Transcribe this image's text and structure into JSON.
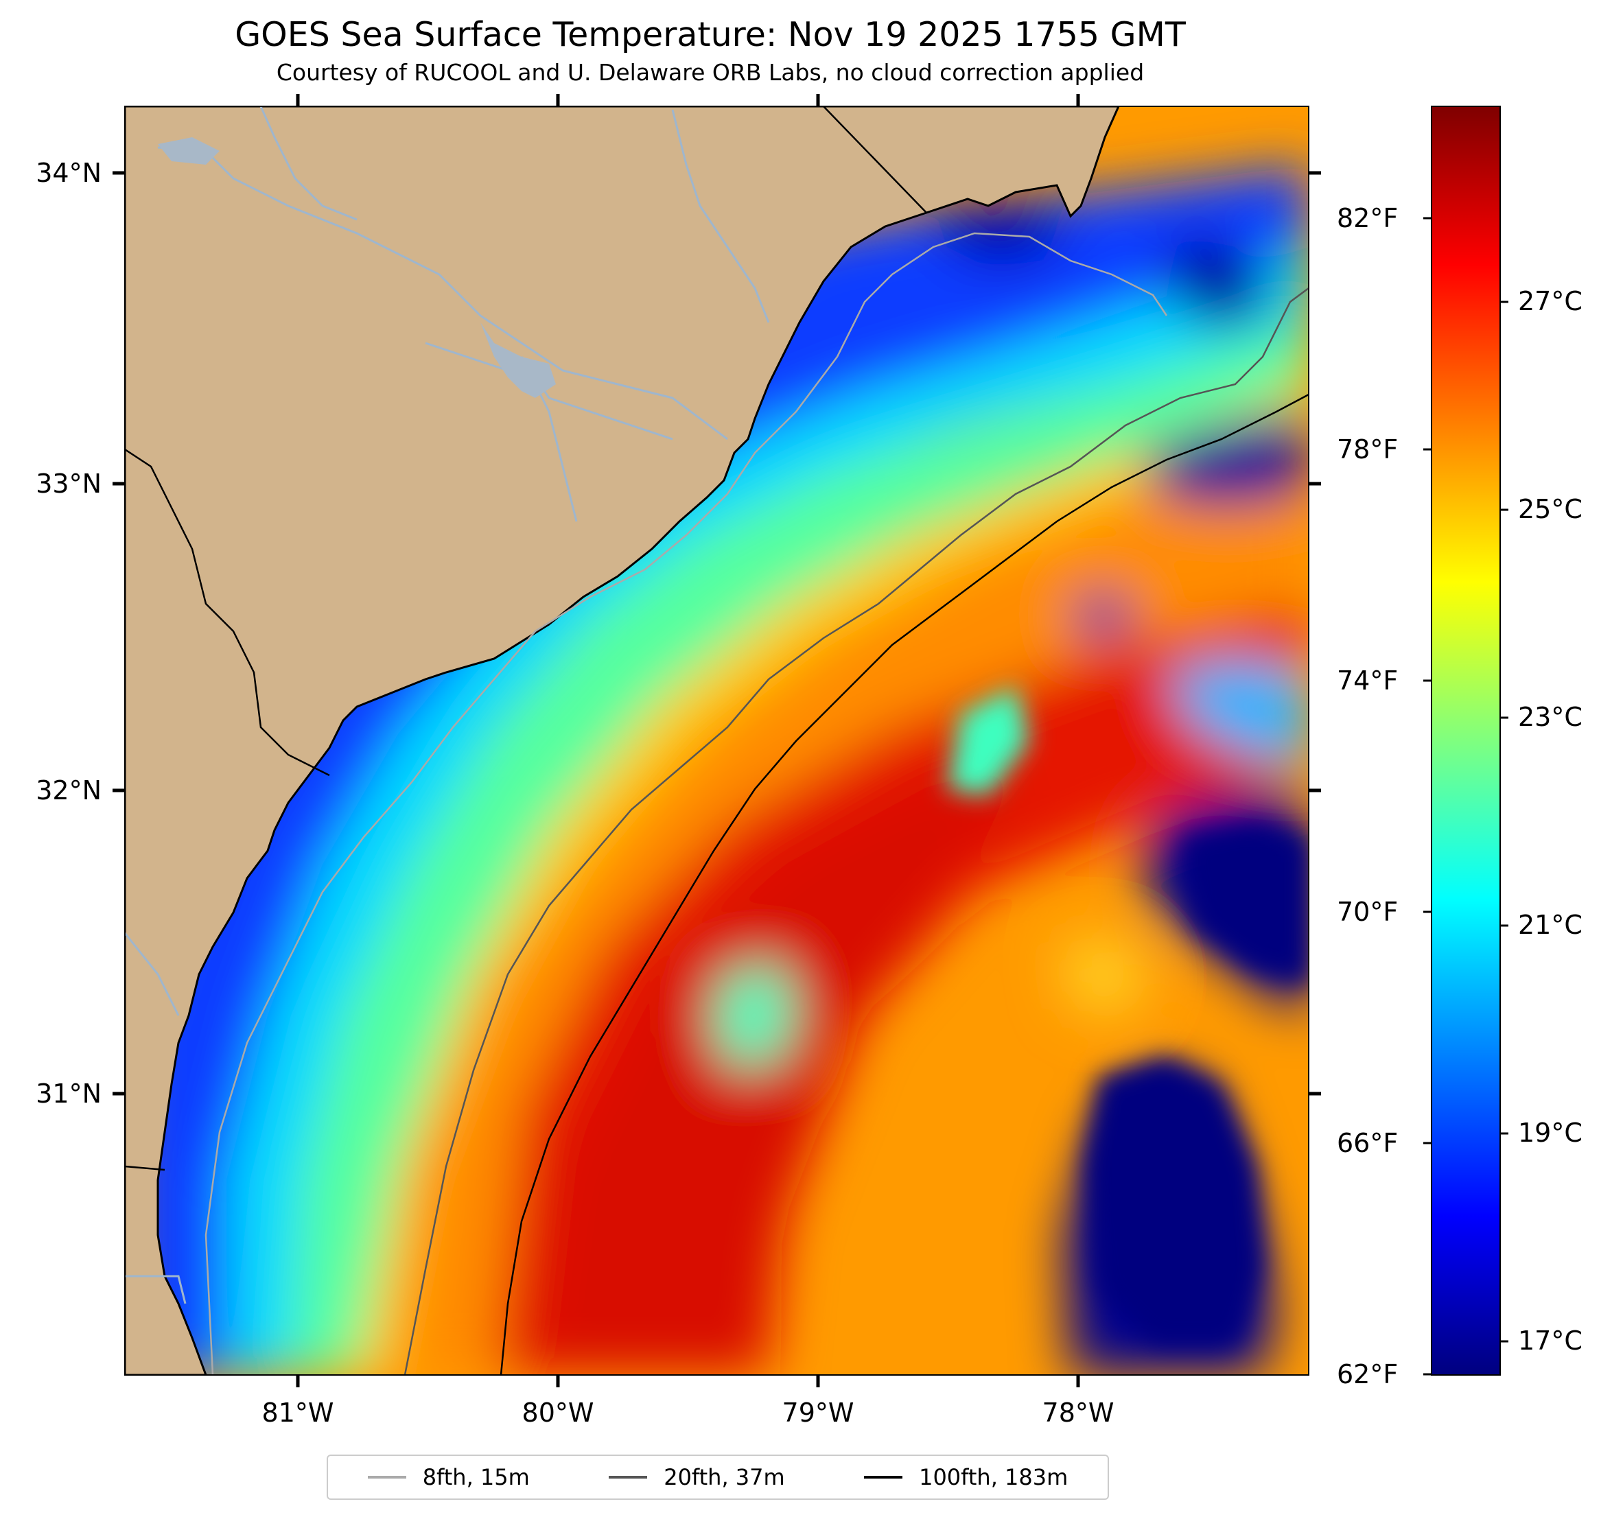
{
  "title": "GOES Sea Surface Temperature: Nov 19 2025 1755 GMT",
  "subtitle": "Courtesy of RUCOOL and U. Delaware ORB Labs, no cloud correction applied",
  "axes": {
    "lon_labels": [
      "81°W",
      "80°W",
      "79°W",
      "78°W"
    ],
    "lat_labels": [
      "34°N",
      "33°N",
      "32°N",
      "31°N"
    ]
  },
  "colorbar": {
    "celsius_labels": [
      "27°C",
      "25°C",
      "23°C",
      "21°C",
      "19°C",
      "17°C"
    ],
    "fahrenheit_labels": [
      "82°F",
      "78°F",
      "74°F",
      "70°F",
      "66°F",
      "62°F"
    ],
    "colormap": [
      "#00007f",
      "#0000ff",
      "#007fff",
      "#00ffff",
      "#7fff7f",
      "#ffff00",
      "#ff7f00",
      "#ff0000",
      "#7f0000"
    ]
  },
  "legend": [
    {
      "label": "8fth, 15m",
      "color": "#aaaaaa"
    },
    {
      "label": "20fth, 37m",
      "color": "#555555"
    },
    {
      "label": "100fth, 183m",
      "color": "#000000"
    }
  ],
  "colors": {
    "land": "#d2b48c",
    "rivers": "#9fb6cd",
    "cold": "#0000a8",
    "cool": "#0a3cff",
    "mild": "#00d8ff",
    "warm_mid": "#f7e21c",
    "warm": "#ff9a00",
    "hot": "#ee1a00"
  },
  "chart_data": {
    "type": "heatmap",
    "title": "GOES Sea Surface Temperature: Nov 19 2025 1755 GMT",
    "subtitle": "Courtesy of RUCOOL and U. Delaware ORB Labs, no cloud correction applied",
    "x_axis": {
      "label": "",
      "range": [
        -81.67,
        -77.1
      ],
      "ticks": [
        "81°W",
        "80°W",
        "79°W",
        "78°W"
      ]
    },
    "y_axis": {
      "label": "",
      "range": [
        30.1,
        34.22
      ],
      "ticks": [
        "31°N",
        "32°N",
        "33°N",
        "34°N"
      ]
    },
    "colorbar_celsius": [
      17,
      19,
      21,
      23,
      25,
      27
    ],
    "colorbar_fahrenheit": [
      62,
      66,
      70,
      74,
      78,
      82
    ],
    "legend": [
      "8fth, 15m",
      "20fth, 37m",
      "100fth, 183m"
    ],
    "legend_placement": "bottom-center"
  }
}
